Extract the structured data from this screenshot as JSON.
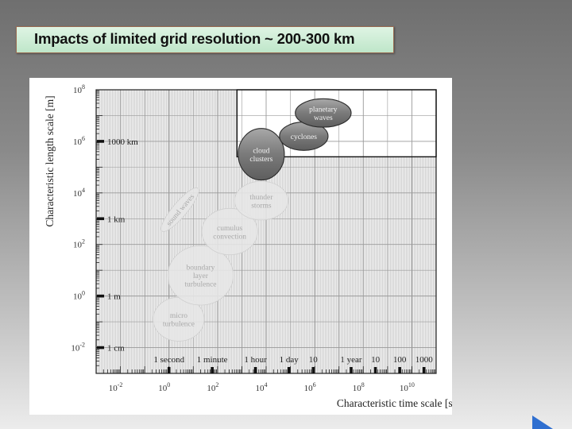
{
  "slide": {
    "title": "Impacts of limited grid resolution ~ 200-300 km"
  },
  "chart_data": {
    "type": "scatter",
    "title": "",
    "xlabel": "Characteristic time scale [s]",
    "ylabel": "Characteristic length scale [m]",
    "x_scale": "log",
    "y_scale": "log",
    "xlim_log10": [
      -3,
      11
    ],
    "ylim_log10": [
      -3,
      8
    ],
    "x_ticks": [
      {
        "exp": -2,
        "base": "10",
        "sup": "-2"
      },
      {
        "exp": 0,
        "base": "10",
        "sup": "0"
      },
      {
        "exp": 2,
        "base": "10",
        "sup": "2"
      },
      {
        "exp": 4,
        "base": "10",
        "sup": "4"
      },
      {
        "exp": 6,
        "base": "10",
        "sup": "6"
      },
      {
        "exp": 8,
        "base": "10",
        "sup": "8"
      },
      {
        "exp": 10,
        "base": "10",
        "sup": "10"
      }
    ],
    "y_ticks": [
      {
        "exp": -2,
        "base": "10",
        "sup": "-2"
      },
      {
        "exp": 0,
        "base": "10",
        "sup": "0"
      },
      {
        "exp": 2,
        "base": "10",
        "sup": "2"
      },
      {
        "exp": 4,
        "base": "10",
        "sup": "4"
      },
      {
        "exp": 6,
        "base": "10",
        "sup": "6"
      },
      {
        "exp": 8,
        "base": "10",
        "sup": "8"
      }
    ],
    "time_markers": [
      {
        "label": "1 second",
        "log10_s": 0
      },
      {
        "label": "1 minute",
        "log10_s": 1.78
      },
      {
        "label": "1 hour",
        "log10_s": 3.56
      },
      {
        "label": "1 day",
        "log10_s": 4.94
      },
      {
        "label": "10",
        "log10_s": 5.94
      },
      {
        "label": "1 year",
        "log10_s": 7.5
      },
      {
        "label": "10",
        "log10_s": 8.5
      },
      {
        "label": "100",
        "log10_s": 9.5
      },
      {
        "label": "1000",
        "log10_s": 10.5
      }
    ],
    "length_markers": [
      {
        "label": "1000 km",
        "log10_m": 6
      },
      {
        "label": "1 km",
        "log10_m": 3
      },
      {
        "label": "1 m",
        "log10_m": 0
      },
      {
        "label": "1 cm",
        "log10_m": -2
      }
    ],
    "resolved_region": {
      "x_log10": [
        2.8,
        11
      ],
      "y_log10": [
        5.4,
        8
      ]
    },
    "phenomena": [
      {
        "name": "micro turbulence",
        "lines": [
          "micro",
          "turbulence"
        ],
        "x_log10": 0.4,
        "y_log10": -0.9,
        "rx_dec": 1.05,
        "ry_dec": 0.85,
        "angle": 0,
        "resolved": false
      },
      {
        "name": "boundary layer turbulence",
        "lines": [
          "boundary",
          "layer",
          "turbulence"
        ],
        "x_log10": 1.3,
        "y_log10": 0.8,
        "rx_dec": 1.35,
        "ry_dec": 1.15,
        "angle": 0,
        "resolved": false
      },
      {
        "name": "cumulus convection",
        "lines": [
          "cumulus",
          "convection"
        ],
        "x_log10": 2.5,
        "y_log10": 2.5,
        "rx_dec": 1.15,
        "ry_dec": 0.9,
        "angle": 0,
        "resolved": false
      },
      {
        "name": "thunder storms",
        "lines": [
          "thunder",
          "storms"
        ],
        "x_log10": 3.8,
        "y_log10": 3.7,
        "rx_dec": 1.1,
        "ry_dec": 0.75,
        "angle": 0,
        "resolved": false
      },
      {
        "name": "sound waves",
        "lines": [
          "sound waves"
        ],
        "x_log10": 0.45,
        "y_log10": 3.35,
        "rx_dec": 1.15,
        "ry_dec": 0.28,
        "angle": -50,
        "resolved": false
      },
      {
        "name": "cloud clusters",
        "lines": [
          "cloud",
          "clusters"
        ],
        "x_log10": 3.8,
        "y_log10": 5.5,
        "rx_dec": 0.95,
        "ry_dec": 1.0,
        "angle": 0,
        "resolved": true
      },
      {
        "name": "cyclones",
        "lines": [
          "cyclones"
        ],
        "x_log10": 5.55,
        "y_log10": 6.2,
        "rx_dec": 1.0,
        "ry_dec": 0.55,
        "angle": 0,
        "resolved": true
      },
      {
        "name": "planetary waves",
        "lines": [
          "planetary",
          "waves"
        ],
        "x_log10": 6.35,
        "y_log10": 7.1,
        "rx_dec": 1.15,
        "ry_dec": 0.55,
        "angle": 0,
        "resolved": true
      }
    ],
    "grid": true,
    "legend": "none"
  },
  "nav": {
    "next_icon": "play-arrow-icon",
    "accent_color": "#2f6fd0"
  }
}
